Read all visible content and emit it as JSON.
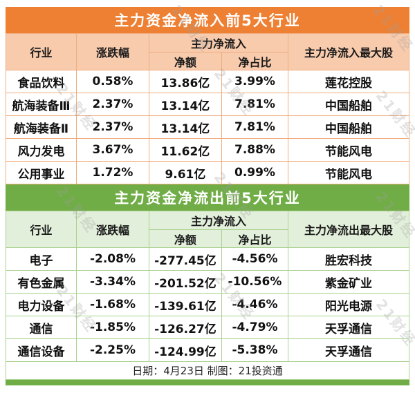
{
  "colors": {
    "accent_orange": "#EE8033",
    "header_orange": "#F8CBAD",
    "border_orange": "#F0AC7D",
    "accent_green": "#70AD47",
    "header_green": "#E2EFDA",
    "border_green": "#A9D18E",
    "watermark_gray": "rgba(160,160,160,0.30)"
  },
  "watermark": {
    "text": "21财经"
  },
  "inflow": {
    "title": "主力资金净流入前5大行业",
    "headers": {
      "industry": "行业",
      "change": "涨跌幅",
      "group": "主力净流入",
      "net_amount": "净额",
      "net_ratio": "净占比",
      "top_stock": "主力净流入最大股"
    },
    "rows": [
      {
        "industry": "食品饮料",
        "change": "0.58%",
        "net_amount": "13.86亿",
        "net_ratio": "3.99%",
        "top_stock": "莲花控股"
      },
      {
        "industry": "航海装备Ⅲ",
        "change": "2.37%",
        "net_amount": "13.14亿",
        "net_ratio": "7.81%",
        "top_stock": "中国船舶"
      },
      {
        "industry": "航海装备Ⅱ",
        "change": "2.37%",
        "net_amount": "13.14亿",
        "net_ratio": "7.81%",
        "top_stock": "中国船舶"
      },
      {
        "industry": "风力发电",
        "change": "3.67%",
        "net_amount": "11.62亿",
        "net_ratio": "7.88%",
        "top_stock": "节能风电"
      },
      {
        "industry": "公用事业",
        "change": "1.72%",
        "net_amount": "9.61亿",
        "net_ratio": "0.99%",
        "top_stock": "节能风电"
      }
    ]
  },
  "outflow": {
    "title": "主力资金净流出前5大行业",
    "headers": {
      "industry": "行业",
      "change": "涨跌幅",
      "group": "主力净流入",
      "net_amount": "净额",
      "net_ratio": "净占比",
      "top_stock": "主力净流出最大股"
    },
    "rows": [
      {
        "industry": "电子",
        "change": "-2.08%",
        "net_amount": "-277.45亿",
        "net_ratio": "-4.56%",
        "top_stock": "胜宏科技"
      },
      {
        "industry": "有色金属",
        "change": "-3.34%",
        "net_amount": "-201.52亿",
        "net_ratio": "-10.56%",
        "top_stock": "紫金矿业"
      },
      {
        "industry": "电力设备",
        "change": "-1.68%",
        "net_amount": "-139.61亿",
        "net_ratio": "-4.46%",
        "top_stock": "阳光电源"
      },
      {
        "industry": "通信",
        "change": "-1.85%",
        "net_amount": "-126.27亿",
        "net_ratio": "-4.79%",
        "top_stock": "天孚通信"
      },
      {
        "industry": "通信设备",
        "change": "-2.25%",
        "net_amount": "-124.99亿",
        "net_ratio": "-5.38%",
        "top_stock": "天孚通信"
      }
    ]
  },
  "footer": {
    "text": "日期：4月23日 制图：21投资通"
  },
  "chart_data": [
    {
      "type": "table",
      "title": "主力资金净流入前5大行业",
      "columns": [
        "行业",
        "涨跌幅",
        "主力净流入 净额",
        "主力净流入 净占比",
        "主力净流入最大股"
      ],
      "rows": [
        [
          "食品饮料",
          "0.58%",
          "13.86亿",
          "3.99%",
          "莲花控股"
        ],
        [
          "航海装备Ⅲ",
          "2.37%",
          "13.14亿",
          "7.81%",
          "中国船舶"
        ],
        [
          "航海装备Ⅱ",
          "2.37%",
          "13.14亿",
          "7.81%",
          "中国船舶"
        ],
        [
          "风力发电",
          "3.67%",
          "11.62亿",
          "7.88%",
          "节能风电"
        ],
        [
          "公用事业",
          "1.72%",
          "9.61亿",
          "0.99%",
          "节能风电"
        ]
      ]
    },
    {
      "type": "table",
      "title": "主力资金净流出前5大行业",
      "columns": [
        "行业",
        "涨跌幅",
        "主力净流入 净额",
        "主力净流入 净占比",
        "主力净流出最大股"
      ],
      "rows": [
        [
          "电子",
          "-2.08%",
          "-277.45亿",
          "-4.56%",
          "胜宏科技"
        ],
        [
          "有色金属",
          "-3.34%",
          "-201.52亿",
          "-10.56%",
          "紫金矿业"
        ],
        [
          "电力设备",
          "-1.68%",
          "-139.61亿",
          "-4.46%",
          "阳光电源"
        ],
        [
          "通信",
          "-1.85%",
          "-126.27亿",
          "-4.79%",
          "天孚通信"
        ],
        [
          "通信设备",
          "-2.25%",
          "-124.99亿",
          "-5.38%",
          "天孚通信"
        ]
      ]
    }
  ]
}
